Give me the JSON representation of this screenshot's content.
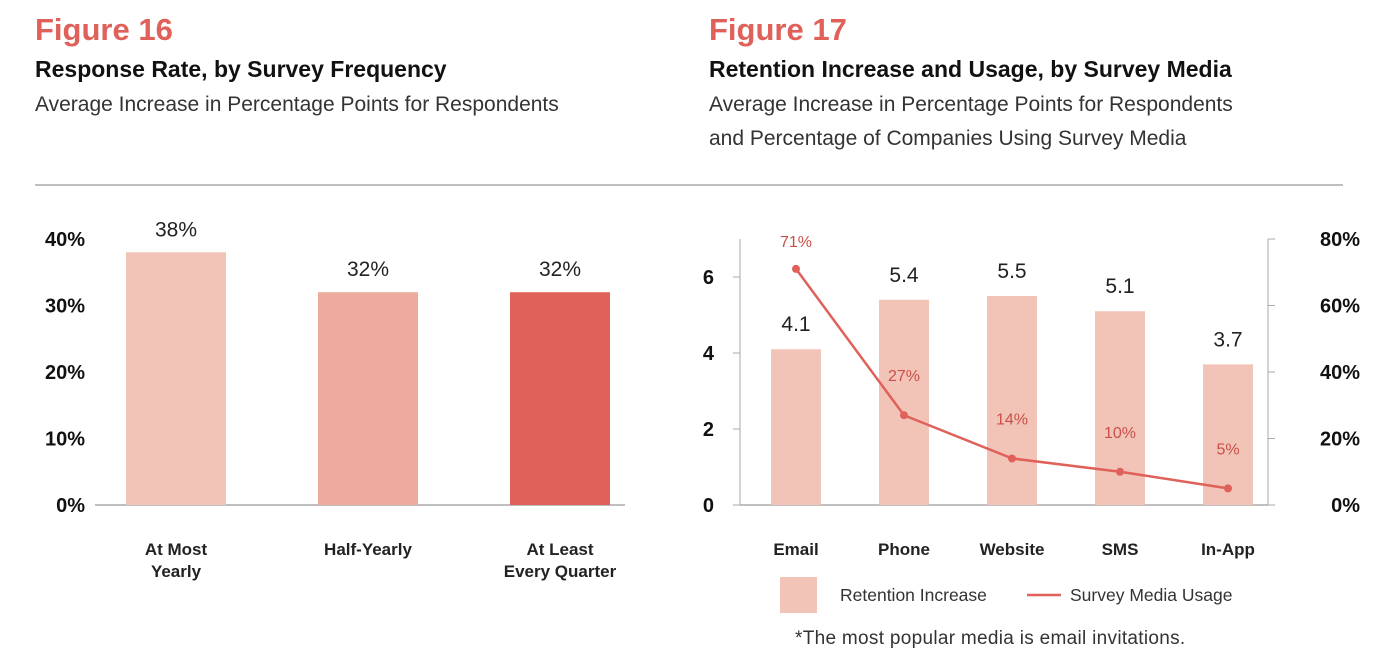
{
  "chart_data": [
    {
      "type": "bar",
      "figure_label": "Figure 16",
      "title": "Response Rate, by Survey Frequency",
      "subtitle": "Average Increase in Percentage Points for Respondents",
      "categories": [
        "At Most\nYearly",
        "Half-Yearly",
        "At Least\nEvery Quarter"
      ],
      "values": [
        38,
        32,
        32
      ],
      "value_labels": [
        "38%",
        "32%",
        "32%"
      ],
      "colors": [
        "#f2c4b8",
        "#eeab9d",
        "#e0605a"
      ],
      "ylim": [
        0,
        40
      ],
      "yticks": [
        {
          "value": 0,
          "label": "0%"
        },
        {
          "value": 10,
          "label": "10%"
        },
        {
          "value": 20,
          "label": "20%"
        },
        {
          "value": 30,
          "label": "30%"
        },
        {
          "value": 40,
          "label": "40%"
        }
      ]
    },
    {
      "type": "bar_line",
      "figure_label": "Figure 17",
      "title": "Retention Increase and Usage, by Survey Media",
      "subtitle": "Average Increase in Percentage Points for Respondents\nand Percentage of Companies Using Survey Media",
      "categories": [
        "Email",
        "Phone",
        "Website",
        "SMS",
        "In-App"
      ],
      "series": [
        {
          "name": "Retention Increase",
          "type": "bar",
          "color": "#f2c4b8",
          "values": [
            4.1,
            5.4,
            5.5,
            5.1,
            3.7
          ]
        },
        {
          "name": "Survey Media Usage",
          "type": "line",
          "axis": "y2",
          "color": "#e0605a",
          "values": [
            71,
            27,
            14,
            10,
            5
          ],
          "value_labels": [
            "71%",
            "27%",
            "14%",
            "10%",
            "5%"
          ]
        }
      ],
      "ylim": [
        0,
        7
      ],
      "yticks": [
        0,
        2,
        4,
        6
      ],
      "y2lim": [
        0,
        80
      ],
      "y2ticks": [
        {
          "value": 0,
          "label": "0%"
        },
        {
          "value": 20,
          "label": "20%"
        },
        {
          "value": 40,
          "label": "40%"
        },
        {
          "value": 60,
          "label": "60%"
        },
        {
          "value": 80,
          "label": "80%"
        }
      ],
      "note": "*The most popular media is email invitations."
    }
  ]
}
